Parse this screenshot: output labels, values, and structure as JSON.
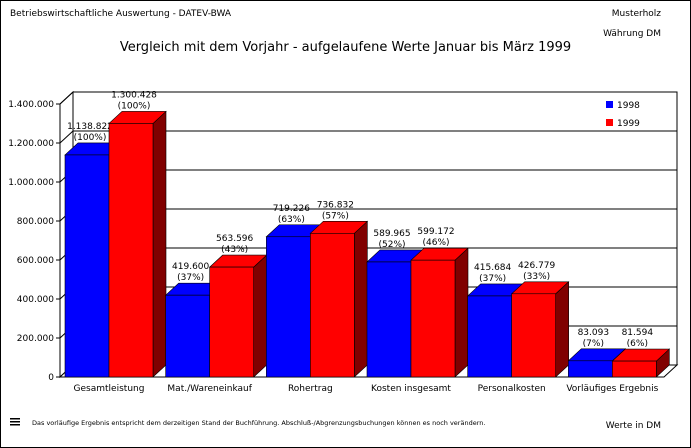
{
  "header": {
    "left": "Betriebswirtschaftliche Auswertung - DATEV-BWA",
    "right_company": "Musterholz",
    "right_currency": "Währung DM"
  },
  "footer": {
    "note": "Das vorläufige Ergebnis entspricht dem derzeitigen Stand der Buchführung. Abschluß-/Abgrenzungsbuchungen können es noch verändern.",
    "units": "Werte in DM"
  },
  "colors": {
    "series_1998": "#0000ff",
    "series_1998_dark": "#000080",
    "series_1999": "#ff0000",
    "series_1999_dark": "#800000",
    "grid": "#000000"
  },
  "chart_data": {
    "type": "bar",
    "title": "Vergleich mit dem Vorjahr - aufgelaufene Werte Januar bis März 1999",
    "categories": [
      "Gesamtleistung",
      "Mat./Wareneinkauf",
      "Rohertrag",
      "Kosten insgesamt",
      "Personalkosten",
      "Vorläufiges Ergebnis"
    ],
    "series": [
      {
        "name": "1998",
        "values": [
          1138822,
          419600,
          719226,
          589965,
          415684,
          83093
        ],
        "labels": [
          "1.138.822",
          "419.600",
          "719.226",
          "589.965",
          "415.684",
          "83.093"
        ],
        "percents": [
          "(100%)",
          "(37%)",
          "(63%)",
          "(52%)",
          "(37%)",
          "(7%)"
        ]
      },
      {
        "name": "1999",
        "values": [
          1300428,
          563596,
          736832,
          599172,
          426779,
          81594
        ],
        "labels": [
          "1.300.428",
          "563.596",
          "736.832",
          "599.172",
          "426.779",
          "81.594"
        ],
        "percents": [
          "(100%)",
          "(43%)",
          "(57%)",
          "(46%)",
          "(33%)",
          "(6%)"
        ]
      }
    ],
    "yticks": [
      "0",
      "200.000",
      "400.000",
      "600.000",
      "800.000",
      "1.000.000",
      "1.200.000",
      "1.400.000"
    ],
    "ylim": [
      0,
      1400000
    ],
    "grid": true,
    "legend_position": "top-right"
  }
}
